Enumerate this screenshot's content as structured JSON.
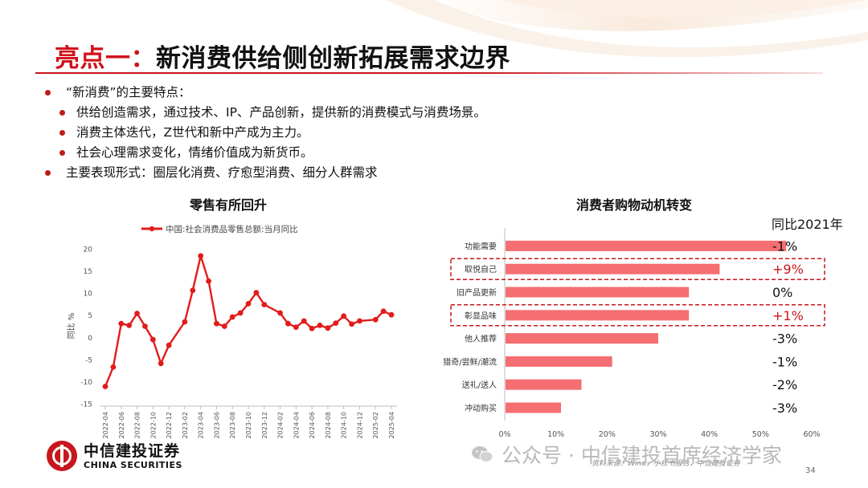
{
  "title": {
    "highlight": "亮点一：",
    "rest": "新消费供给侧创新拓展需求边界"
  },
  "bullets": [
    {
      "level": 1,
      "text": "“新消费”的主要特点："
    },
    {
      "level": 2,
      "text": "供给创造需求，通过技术、IP、产品创新，提供新的消费模式与消费场景。"
    },
    {
      "level": 2,
      "text": "消费主体迭代，Z世代和新中产成为主力。"
    },
    {
      "level": 2,
      "text": "社会心理需求变化，情绪价值成为新货币。"
    },
    {
      "level": 1,
      "text": "主要表现形式：圈层化消费、疗愈型消费、细分人群需求"
    }
  ],
  "left_panel": {
    "title": "零售有所回升"
  },
  "right_panel": {
    "title": "消费者购物动机转变",
    "yoy_header": "同比2021年"
  },
  "colors": {
    "accent_red": "#d0121b",
    "line_red": "#e21b1b",
    "bar_pink": "#f46e72",
    "dash_red": "#c8161d"
  },
  "chart_data": [
    {
      "type": "line",
      "legend": "中国:社会消费品零售总额:当月同比",
      "ylabel": "同比 %",
      "ylim": [
        -15,
        20
      ],
      "yticks": [
        -15,
        -10,
        -5,
        0,
        5,
        10,
        15,
        20
      ],
      "xtick_labels": [
        "2022-04",
        "2022-06",
        "2022-08",
        "2022-10",
        "2022-12",
        "2023-02",
        "2023-04",
        "2023-06",
        "2023-08",
        "2023-10",
        "2023-12",
        "2024-02",
        "2024-04",
        "2024-06",
        "2024-08",
        "2024-10",
        "2024-12",
        "2025-02",
        "2025-04"
      ],
      "x": [
        "2022-04",
        "2022-05",
        "2022-06",
        "2022-07",
        "2022-08",
        "2022-09",
        "2022-10",
        "2022-11",
        "2022-12",
        "2023-02",
        "2023-03",
        "2023-04",
        "2023-05",
        "2023-06",
        "2023-07",
        "2023-08",
        "2023-09",
        "2023-10",
        "2023-11",
        "2023-12",
        "2024-02",
        "2024-03",
        "2024-04",
        "2024-05",
        "2024-06",
        "2024-07",
        "2024-08",
        "2024-09",
        "2024-10",
        "2024-11",
        "2024-12",
        "2025-02",
        "2025-03",
        "2025-04"
      ],
      "values": [
        -11.1,
        -6.7,
        3.1,
        2.7,
        5.4,
        2.5,
        -0.5,
        -5.9,
        -1.8,
        3.5,
        10.6,
        18.4,
        12.7,
        3.1,
        2.5,
        4.6,
        5.5,
        7.6,
        10.1,
        7.4,
        5.5,
        3.1,
        2.3,
        3.7,
        2.0,
        2.7,
        2.1,
        3.2,
        4.8,
        3.0,
        3.7,
        4.0,
        5.9,
        5.1
      ],
      "grid": false
    },
    {
      "type": "bar",
      "orientation": "horizontal",
      "categories": [
        "功能需要",
        "取悦自己",
        "旧产品更新",
        "彰显品味",
        "他人推荐",
        "猎奇/尝鲜/潮流",
        "送礼/送人",
        "冲动购买"
      ],
      "values": [
        55,
        42,
        36,
        36,
        30,
        21,
        15,
        11
      ],
      "change_labels": [
        "-1%",
        "+9%",
        "0%",
        "+1%",
        "-3%",
        "-1%",
        "-2%",
        "-3%"
      ],
      "highlighted": [
        "取悦自己",
        "彰显品味"
      ],
      "xlim": [
        0,
        60
      ],
      "xticks": [
        "0%",
        "10%",
        "20%",
        "30%",
        "40%",
        "50%",
        "60%"
      ]
    }
  ],
  "footer": {
    "logo_cn": "中信建投证券",
    "logo_en": "CHINA SECURITIES",
    "watermark": "公众号 · 中信建投首席经济学家",
    "source": "资料来源：Wind，小红书报告，中信建投证券",
    "page_number": "34"
  }
}
